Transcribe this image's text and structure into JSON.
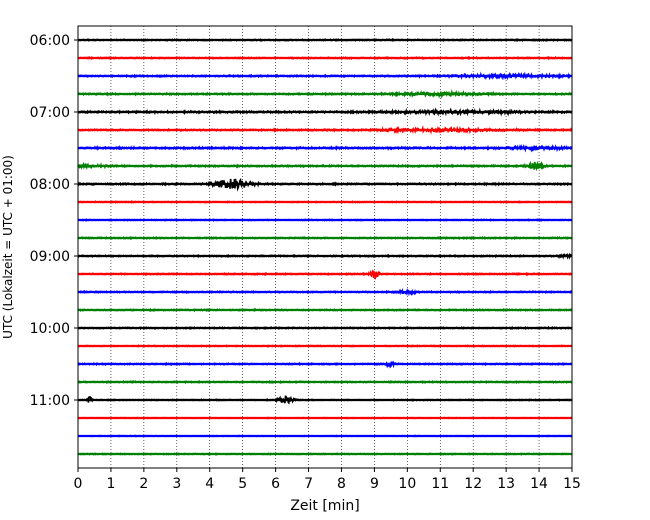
{
  "chart_data": {
    "type": "line",
    "title": "",
    "xlabel": "Zeit  [min]",
    "ylabel": "UTC (Lokalzeit = UTC + 01:00)",
    "xlim": [
      0,
      15
    ],
    "x_ticks": [
      0,
      1,
      2,
      3,
      4,
      5,
      6,
      7,
      8,
      9,
      10,
      11,
      12,
      13,
      14,
      15
    ],
    "x_tick_labels": [
      "0",
      "1",
      "2",
      "3",
      "4",
      "5",
      "6",
      "7",
      "8",
      "9",
      "10",
      "11",
      "12",
      "13",
      "14",
      "15"
    ],
    "y_tick_labels": [
      "06:00",
      "07:00",
      "08:00",
      "09:00",
      "10:00",
      "11:00"
    ],
    "y_tick_trace_index": [
      0,
      4,
      8,
      12,
      16,
      20
    ],
    "trace_interval_min": 15,
    "grid": "vertical dotted",
    "colors_cycle": [
      "#000000",
      "#ff0000",
      "#0000ff",
      "#008000"
    ],
    "traces": [
      {
        "start": "06:00",
        "color": "#000000",
        "base_amp": 0.25,
        "events": []
      },
      {
        "start": "06:15",
        "color": "#ff0000",
        "base_amp": 0.25,
        "events": []
      },
      {
        "start": "06:30",
        "color": "#0000ff",
        "base_amp": 0.3,
        "events": [
          {
            "t": 13.0,
            "amp": 0.55,
            "width": 3.5
          }
        ]
      },
      {
        "start": "06:45",
        "color": "#008000",
        "base_amp": 0.3,
        "events": [
          {
            "t": 11.0,
            "amp": 0.55,
            "width": 3.0
          }
        ]
      },
      {
        "start": "07:00",
        "color": "#000000",
        "base_amp": 0.35,
        "events": [
          {
            "t": 11.5,
            "amp": 0.6,
            "width": 4.0
          }
        ]
      },
      {
        "start": "07:15",
        "color": "#ff0000",
        "base_amp": 0.3,
        "events": [
          {
            "t": 11.0,
            "amp": 0.55,
            "width": 4.0
          }
        ]
      },
      {
        "start": "07:30",
        "color": "#0000ff",
        "base_amp": 0.35,
        "events": [
          {
            "t": 14.0,
            "amp": 0.5,
            "width": 2.0
          }
        ]
      },
      {
        "start": "07:45",
        "color": "#008000",
        "base_amp": 0.3,
        "events": [
          {
            "t": 0.3,
            "amp": 0.5,
            "width": 1.2
          },
          {
            "t": 13.9,
            "amp": 1.8,
            "width": 0.5
          }
        ]
      },
      {
        "start": "08:00",
        "color": "#000000",
        "base_amp": 0.3,
        "events": [
          {
            "t": 4.7,
            "amp": 2.0,
            "width": 1.3
          }
        ]
      },
      {
        "start": "08:15",
        "color": "#ff0000",
        "base_amp": 0.2,
        "events": []
      },
      {
        "start": "08:30",
        "color": "#0000ff",
        "base_amp": 0.2,
        "events": []
      },
      {
        "start": "08:45",
        "color": "#008000",
        "base_amp": 0.25,
        "events": []
      },
      {
        "start": "09:00",
        "color": "#000000",
        "base_amp": 0.25,
        "events": [
          {
            "t": 14.8,
            "amp": 0.5,
            "width": 0.4
          }
        ]
      },
      {
        "start": "09:15",
        "color": "#ff0000",
        "base_amp": 0.25,
        "events": [
          {
            "t": 9.0,
            "amp": 1.6,
            "width": 0.3
          }
        ]
      },
      {
        "start": "09:30",
        "color": "#0000ff",
        "base_amp": 0.25,
        "events": [
          {
            "t": 10.0,
            "amp": 0.4,
            "width": 0.8
          }
        ]
      },
      {
        "start": "09:45",
        "color": "#008000",
        "base_amp": 0.25,
        "events": []
      },
      {
        "start": "10:00",
        "color": "#000000",
        "base_amp": 0.25,
        "events": []
      },
      {
        "start": "10:15",
        "color": "#ff0000",
        "base_amp": 0.2,
        "events": []
      },
      {
        "start": "10:30",
        "color": "#0000ff",
        "base_amp": 0.25,
        "events": [
          {
            "t": 9.5,
            "amp": 1.0,
            "width": 0.3
          }
        ]
      },
      {
        "start": "10:45",
        "color": "#008000",
        "base_amp": 0.25,
        "events": []
      },
      {
        "start": "11:00",
        "color": "#000000",
        "base_amp": 0.2,
        "events": [
          {
            "t": 0.35,
            "amp": 1.2,
            "width": 0.2
          },
          {
            "t": 6.3,
            "amp": 1.3,
            "width": 0.6
          }
        ]
      },
      {
        "start": "11:15",
        "color": "#ff0000",
        "base_amp": 0.15,
        "events": []
      },
      {
        "start": "11:30",
        "color": "#0000ff",
        "base_amp": 0.15,
        "events": []
      },
      {
        "start": "11:45",
        "color": "#008000",
        "base_amp": 0.2,
        "events": []
      }
    ]
  }
}
